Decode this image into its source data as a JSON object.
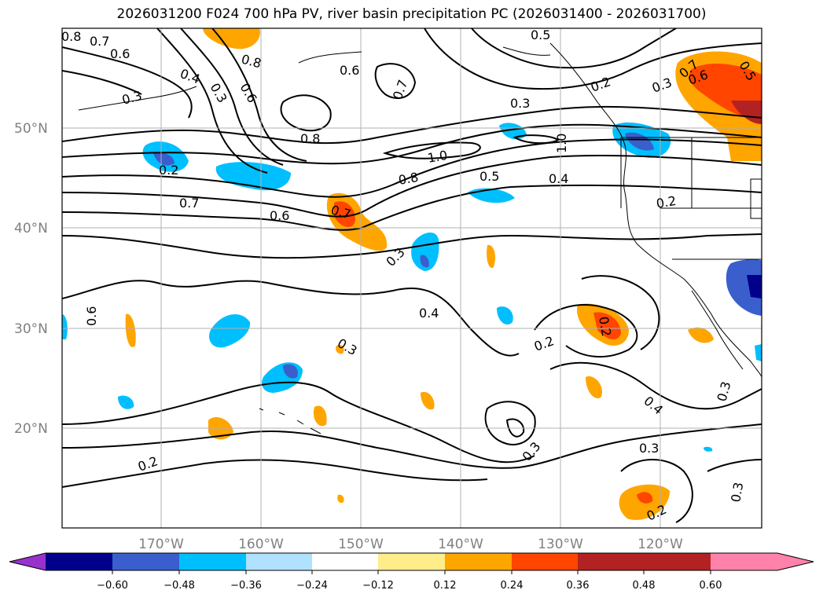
{
  "title": "2026031200 F024 700 hPa PV, river basin precipitation PC (2026031400 - 2026031700)",
  "map": {
    "lat_labels": [
      "50°N",
      "40°N",
      "30°N",
      "20°N"
    ],
    "lon_labels": [
      "170°W",
      "160°W",
      "150°W",
      "140°W",
      "130°W",
      "120°W"
    ]
  },
  "contour_labels": [
    "0.8",
    "0.7",
    "0.6",
    "0.4",
    "0.3",
    "0.8",
    "0.6",
    "0.3",
    "0.6",
    "0.7",
    "0.5",
    "0.3",
    "0.2",
    "0.7",
    "0.6",
    "0.5",
    "0.8",
    "1.0",
    "0.8",
    "0.5",
    "1.0",
    "0.4",
    "0.2",
    "0.7",
    "0.6",
    "0.7",
    "0.3",
    "0.4",
    "0.6",
    "0.3",
    "0.2",
    "0.2",
    "0.4",
    "0.3",
    "0.3",
    "0.3",
    "0.2",
    "0.2",
    "0.3",
    "0.3",
    "0.2"
  ],
  "colorbar": {
    "colors": [
      "#9932cc",
      "#00008b",
      "#3a5fcd",
      "#00bfff",
      "#b0e2ff",
      "#ffffff",
      "#ffec8b",
      "#ffa500",
      "#ff4500",
      "#b22222",
      "#ff82ab"
    ],
    "tick_labels": [
      "−0.60",
      "−0.48",
      "−0.36",
      "−0.24",
      "−0.12",
      "0.12",
      "0.24",
      "0.36",
      "0.48",
      "0.60"
    ]
  }
}
